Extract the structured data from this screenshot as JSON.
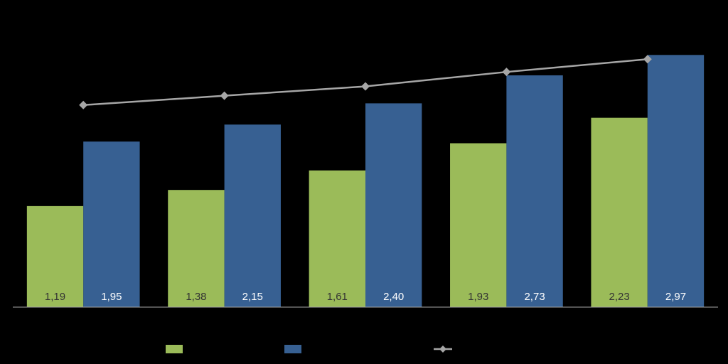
{
  "chart_data": {
    "type": "bar",
    "categories": [
      null,
      null,
      null,
      null,
      null
    ],
    "series": [
      {
        "color": "#9bbb59",
        "values": [
          1.19,
          1.38,
          1.61,
          1.93,
          2.23
        ],
        "value_labels": [
          "1,19",
          "1,38",
          "1,61",
          "1,93",
          "2,23"
        ]
      },
      {
        "color": "#376092",
        "values": [
          1.95,
          2.15,
          2.4,
          2.73,
          2.97
        ],
        "value_labels": [
          "1,95",
          "2,15",
          "2,40",
          "2,73",
          "2,97"
        ]
      },
      {
        "type": "line",
        "color": "#a6a6a6",
        "values": [
          2.38,
          2.49,
          2.6,
          2.77,
          2.92
        ]
      }
    ],
    "ylim": [
      0,
      3.5
    ]
  }
}
